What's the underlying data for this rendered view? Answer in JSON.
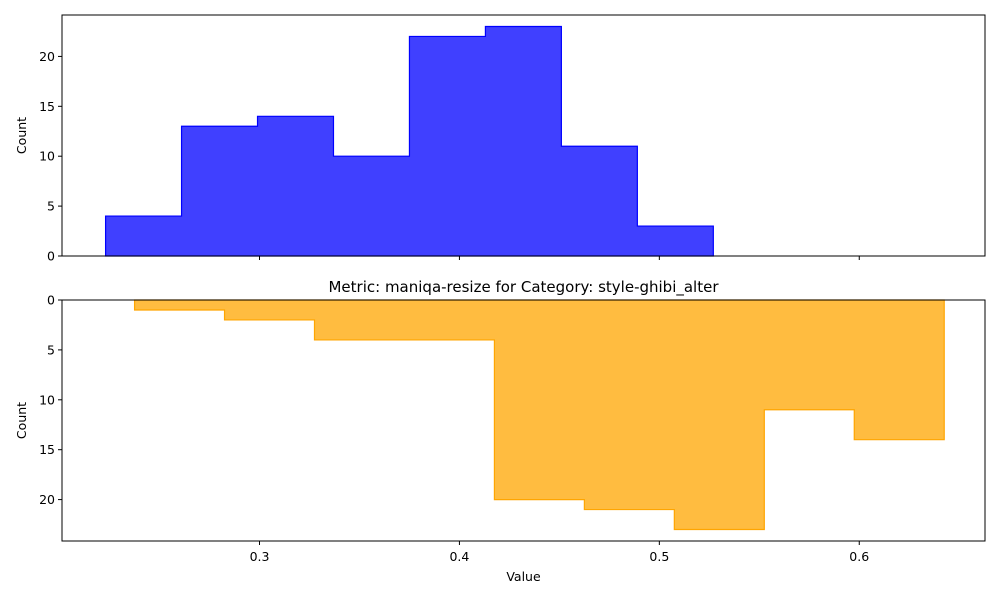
{
  "chart_data": [
    {
      "type": "histogram",
      "title": "",
      "xlabel": "",
      "ylabel": "Count",
      "ylim": [
        0,
        24.15
      ],
      "inverted_y": false,
      "xlim": [
        0.2012,
        0.6629
      ],
      "xticks": [
        0.3,
        0.4,
        0.5,
        0.6
      ],
      "show_xtick_labels": false,
      "yticks": [
        0,
        5,
        10,
        15,
        20
      ],
      "grid": false,
      "legend": "none",
      "color": "#0000ff",
      "fill_opacity": 0.75,
      "bins": [
        {
          "start": 0.223,
          "end": 0.261,
          "count": 4
        },
        {
          "start": 0.261,
          "end": 0.299,
          "count": 13
        },
        {
          "start": 0.299,
          "end": 0.337,
          "count": 14
        },
        {
          "start": 0.337,
          "end": 0.375,
          "count": 10
        },
        {
          "start": 0.375,
          "end": 0.413,
          "count": 22
        },
        {
          "start": 0.413,
          "end": 0.451,
          "count": 23
        },
        {
          "start": 0.451,
          "end": 0.489,
          "count": 11
        },
        {
          "start": 0.489,
          "end": 0.527,
          "count": 3
        }
      ]
    },
    {
      "type": "histogram",
      "title": "Metric: maniqa-resize for Category: style-ghibi_alter",
      "xlabel": "Value",
      "ylabel": "Count",
      "ylim": [
        0,
        24.15
      ],
      "inverted_y": true,
      "xlim": [
        0.2012,
        0.6629
      ],
      "xticks": [
        0.3,
        0.4,
        0.5,
        0.6
      ],
      "show_xtick_labels": true,
      "yticks": [
        0,
        5,
        10,
        15,
        20
      ],
      "grid": false,
      "legend": "none",
      "color": "#ffa500",
      "fill_opacity": 0.75,
      "bins": [
        {
          "start": 0.2375,
          "end": 0.2825,
          "count": 1
        },
        {
          "start": 0.2825,
          "end": 0.3275,
          "count": 2
        },
        {
          "start": 0.3275,
          "end": 0.3725,
          "count": 4
        },
        {
          "start": 0.3725,
          "end": 0.4175,
          "count": 4
        },
        {
          "start": 0.4175,
          "end": 0.4625,
          "count": 20
        },
        {
          "start": 0.4625,
          "end": 0.5075,
          "count": 21
        },
        {
          "start": 0.5075,
          "end": 0.5525,
          "count": 23
        },
        {
          "start": 0.5525,
          "end": 0.5975,
          "count": 11
        },
        {
          "start": 0.5975,
          "end": 0.6425,
          "count": 14
        }
      ]
    }
  ]
}
